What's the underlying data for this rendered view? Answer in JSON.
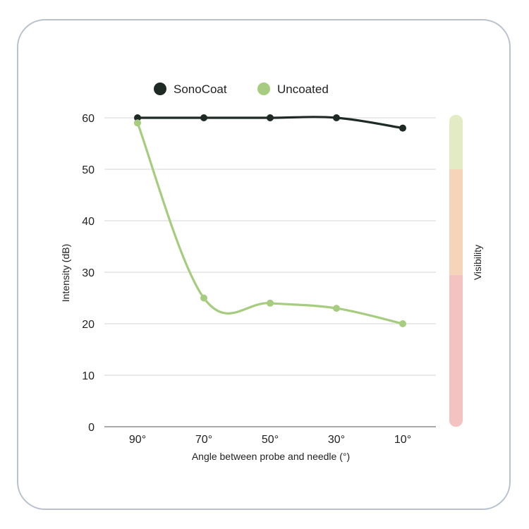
{
  "chart_data": {
    "type": "line",
    "categories": [
      "90°",
      "70°",
      "50°",
      "30°",
      "10°"
    ],
    "series": [
      {
        "name": "SonoCoat",
        "values": [
          60,
          60,
          60,
          60,
          58
        ],
        "color": "#1f2a25"
      },
      {
        "name": "Uncoated",
        "values": [
          59,
          25,
          24,
          23,
          20
        ],
        "color": "#a6cd7f"
      }
    ],
    "xlabel": "Angle between probe and needle (°)",
    "ylabel": "Intensity (dB)",
    "ylim": [
      0,
      60
    ],
    "yticks": [
      0,
      10,
      20,
      30,
      40,
      50,
      60
    ],
    "grid": true,
    "legend": "top-center",
    "visibility_bar": {
      "label": "Visibility",
      "bands": [
        {
          "from": 50,
          "to": 60,
          "color": "#e3ebc5"
        },
        {
          "from": 29.5,
          "to": 50,
          "color": "#f5d4b9"
        },
        {
          "from": 0,
          "to": 29.5,
          "color": "#f4c3c1"
        }
      ]
    }
  }
}
